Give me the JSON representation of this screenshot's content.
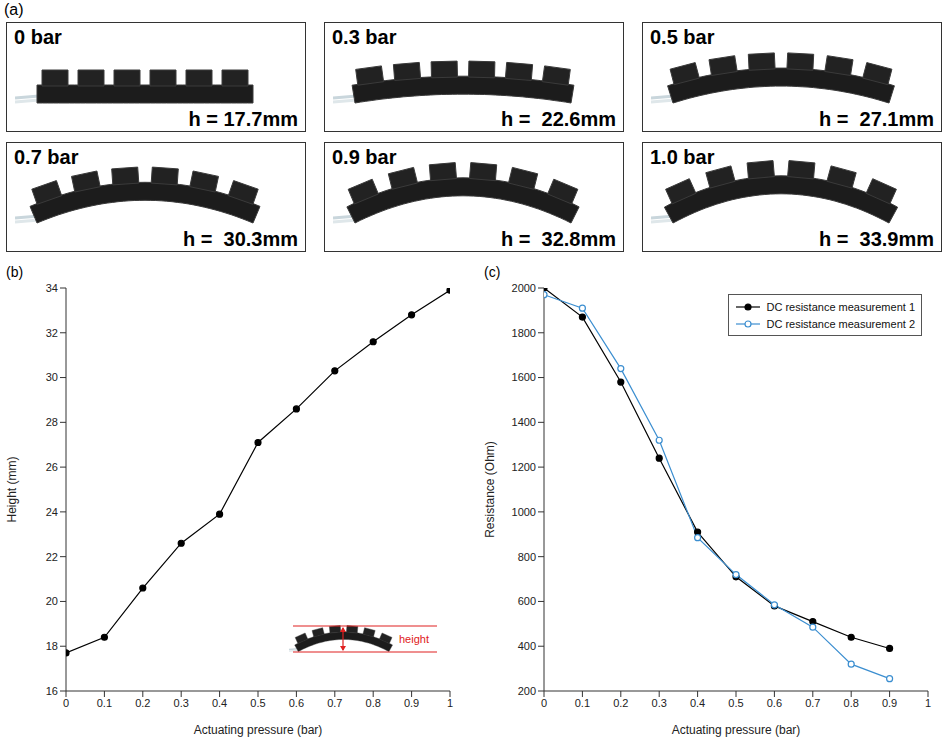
{
  "figure_label": "(a)",
  "photos": [
    {
      "pressure": "0 bar",
      "height_label": "h = 17.7mm",
      "height": 17.7
    },
    {
      "pressure": "0.3 bar",
      "height_label": "h =  22.6mm",
      "height": 22.6
    },
    {
      "pressure": "0.5 bar",
      "height_label": "h =  27.1mm",
      "height": 27.1
    },
    {
      "pressure": "0.7 bar",
      "height_label": "h =  30.3mm",
      "height": 30.3
    },
    {
      "pressure": "0.9 bar",
      "height_label": "h =  32.8mm",
      "height": 32.8
    },
    {
      "pressure": "1.0 bar",
      "height_label": "h =  33.9mm",
      "height": 33.9
    }
  ],
  "chart_data": [
    {
      "type": "line",
      "panel": "(b)",
      "x": [
        0,
        0.1,
        0.2,
        0.3,
        0.4,
        0.5,
        0.6,
        0.7,
        0.8,
        0.9,
        1
      ],
      "values": [
        17.7,
        18.4,
        20.6,
        22.6,
        23.9,
        27.1,
        28.6,
        30.3,
        31.6,
        32.8,
        33.9
      ],
      "color": "#000000",
      "marker": "filled_circle",
      "xlabel": "Actuating pressure (bar)",
      "ylabel": "Height (mm)",
      "xlim": [
        0,
        1
      ],
      "ylim": [
        16,
        34
      ],
      "xticks": [
        0,
        0.1,
        0.2,
        0.3,
        0.4,
        0.5,
        0.6,
        0.7,
        0.8,
        0.9,
        1
      ],
      "yticks": [
        16,
        18,
        20,
        22,
        24,
        26,
        28,
        30,
        32,
        34
      ],
      "grid": false,
      "annotation": "height"
    },
    {
      "type": "line",
      "panel": "(c)",
      "x": [
        0,
        0.1,
        0.2,
        0.3,
        0.4,
        0.5,
        0.6,
        0.7,
        0.8,
        0.9
      ],
      "series": [
        {
          "name": "DC resistance measurement 1",
          "color": "#000000",
          "marker": "filled_circle",
          "values": [
            2000,
            1870,
            1580,
            1240,
            910,
            710,
            580,
            510,
            440,
            390
          ]
        },
        {
          "name": "DC resistance measurement 2",
          "color": "#3b8ed0",
          "marker": "open_circle",
          "values": [
            1970,
            1910,
            1640,
            1320,
            885,
            720,
            585,
            485,
            320,
            255
          ]
        }
      ],
      "xlabel": "Actuating pressure (bar)",
      "ylabel": "Resistance (Ohm)",
      "xlim": [
        0,
        1
      ],
      "ylim": [
        200,
        2000
      ],
      "xticks": [
        0,
        0.1,
        0.2,
        0.3,
        0.4,
        0.5,
        0.6,
        0.7,
        0.8,
        0.9,
        1
      ],
      "yticks": [
        200,
        400,
        600,
        800,
        1000,
        1200,
        1400,
        1600,
        1800,
        2000
      ],
      "grid": false,
      "legend": "upper right"
    }
  ]
}
